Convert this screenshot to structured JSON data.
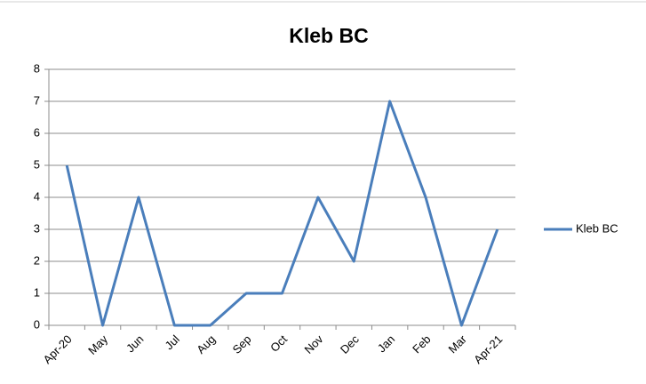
{
  "chart_data": {
    "type": "line",
    "title": "Kleb BC",
    "categories": [
      "Apr-20",
      "May",
      "Jun",
      "Jul",
      "Aug",
      "Sep",
      "Oct",
      "Nov",
      "Dec",
      "Jan",
      "Feb",
      "Mar",
      "Apr-21"
    ],
    "series": [
      {
        "name": "Kleb BC",
        "color": "#4a7ebb",
        "values": [
          5,
          0,
          4,
          0,
          0,
          1,
          1,
          4,
          2,
          7,
          4,
          0,
          3
        ]
      }
    ],
    "ylim": [
      0,
      8
    ],
    "yticks": [
      0,
      1,
      2,
      3,
      4,
      5,
      6,
      7,
      8
    ],
    "grid": true,
    "legend": "right"
  }
}
